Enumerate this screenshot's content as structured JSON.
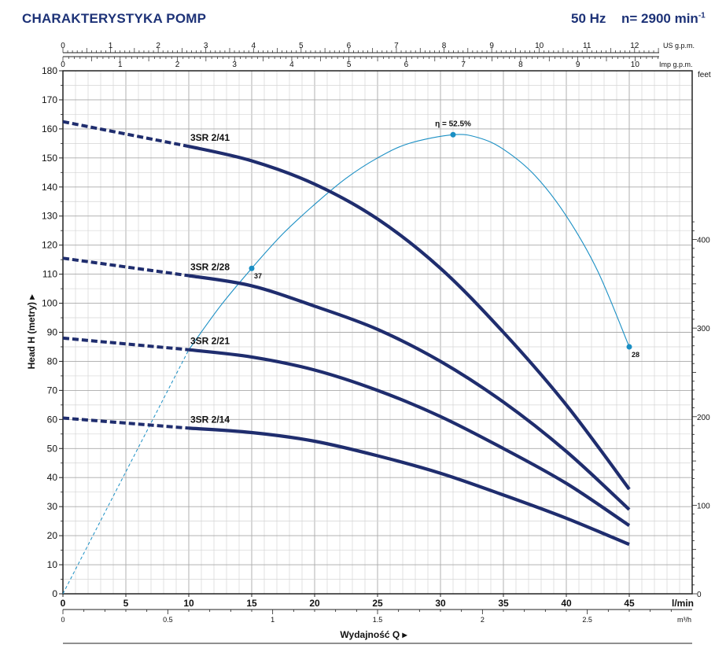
{
  "header": {
    "title": "CHARAKTERYSTYKA POMP",
    "frequency": "50 Hz",
    "speed": "n= 2900 min",
    "speed_exp": "-1"
  },
  "chart_data": {
    "type": "line",
    "title": "CHARAKTERYSTYKA POMP",
    "ylabel": "Head  H  (metry)",
    "xlabel": "Wydajność Q",
    "ylim": [
      0,
      180
    ],
    "xlim": [
      0,
      50
    ],
    "x_unit": "l/min",
    "y_right_unit": "feet",
    "x_ticks": [
      0,
      5,
      10,
      15,
      20,
      25,
      30,
      35,
      40,
      45
    ],
    "y_ticks": [
      0,
      10,
      20,
      30,
      40,
      50,
      60,
      70,
      80,
      90,
      100,
      110,
      120,
      130,
      140,
      150,
      160,
      170,
      180
    ],
    "m3h_axis": {
      "unit": "m³/h",
      "ticks": [
        0,
        0.5,
        1,
        1.5,
        2,
        2.5
      ],
      "labels": [
        "0",
        "0.5",
        "1",
        "1.5",
        "2",
        "2.5"
      ]
    },
    "usgpm_axis": {
      "unit": "US g.p.m.",
      "ticks": [
        0,
        1,
        2,
        3,
        4,
        5,
        6,
        7,
        8,
        9,
        10,
        11,
        12
      ]
    },
    "impgpm_axis": {
      "unit": "Imp g.p.m.",
      "ticks": [
        0,
        1,
        2,
        3,
        4,
        5,
        6,
        7,
        8,
        9,
        10
      ]
    },
    "feet_axis": {
      "ticks": [
        0,
        100,
        200,
        300,
        400
      ]
    },
    "series": [
      {
        "name": "3SR 2/41",
        "dashed": [
          [
            0,
            162.5
          ],
          [
            10,
            154
          ]
        ],
        "solid": [
          [
            10,
            154
          ],
          [
            15,
            149
          ],
          [
            20,
            141
          ],
          [
            25,
            129
          ],
          [
            30,
            112
          ],
          [
            35,
            90
          ],
          [
            40,
            65
          ],
          [
            45,
            36
          ]
        ]
      },
      {
        "name": "3SR 2/28",
        "dashed": [
          [
            0,
            115.5
          ],
          [
            10,
            109.5
          ]
        ],
        "solid": [
          [
            10,
            109.5
          ],
          [
            15,
            106
          ],
          [
            20,
            99
          ],
          [
            25,
            91
          ],
          [
            30,
            80
          ],
          [
            35,
            66
          ],
          [
            40,
            49
          ],
          [
            45,
            29
          ]
        ]
      },
      {
        "name": "3SR 2/21",
        "dashed": [
          [
            0,
            88
          ],
          [
            10,
            84
          ]
        ],
        "solid": [
          [
            10,
            84
          ],
          [
            15,
            81.5
          ],
          [
            20,
            77
          ],
          [
            25,
            70
          ],
          [
            30,
            61
          ],
          [
            35,
            50
          ],
          [
            40,
            38
          ],
          [
            45,
            23.5
          ]
        ]
      },
      {
        "name": "3SR 2/14",
        "dashed": [
          [
            0,
            60.5
          ],
          [
            10,
            57
          ]
        ],
        "solid": [
          [
            10,
            57
          ],
          [
            15,
            55.5
          ],
          [
            20,
            52.5
          ],
          [
            25,
            47.5
          ],
          [
            30,
            41.5
          ],
          [
            35,
            34
          ],
          [
            40,
            26
          ],
          [
            45,
            17
          ]
        ]
      }
    ],
    "efficiency_curve": {
      "name": "η",
      "dashed": [
        [
          0,
          0
        ],
        [
          10,
          84
        ]
      ],
      "solid": [
        [
          10,
          84
        ],
        [
          12.5,
          99
        ],
        [
          15,
          112
        ],
        [
          17.5,
          124
        ],
        [
          20,
          134
        ],
        [
          22.5,
          143
        ],
        [
          25,
          150
        ],
        [
          27.5,
          155
        ],
        [
          31,
          158
        ],
        [
          33,
          157
        ],
        [
          35,
          153
        ],
        [
          37.5,
          144
        ],
        [
          40,
          130
        ],
        [
          42.5,
          111
        ],
        [
          45,
          85
        ]
      ],
      "points": [
        {
          "x": 15,
          "y": 112,
          "label": "37"
        },
        {
          "x": 31,
          "y": 158,
          "label": "η = 52.5%"
        },
        {
          "x": 45,
          "y": 85,
          "label": "28"
        }
      ]
    }
  }
}
